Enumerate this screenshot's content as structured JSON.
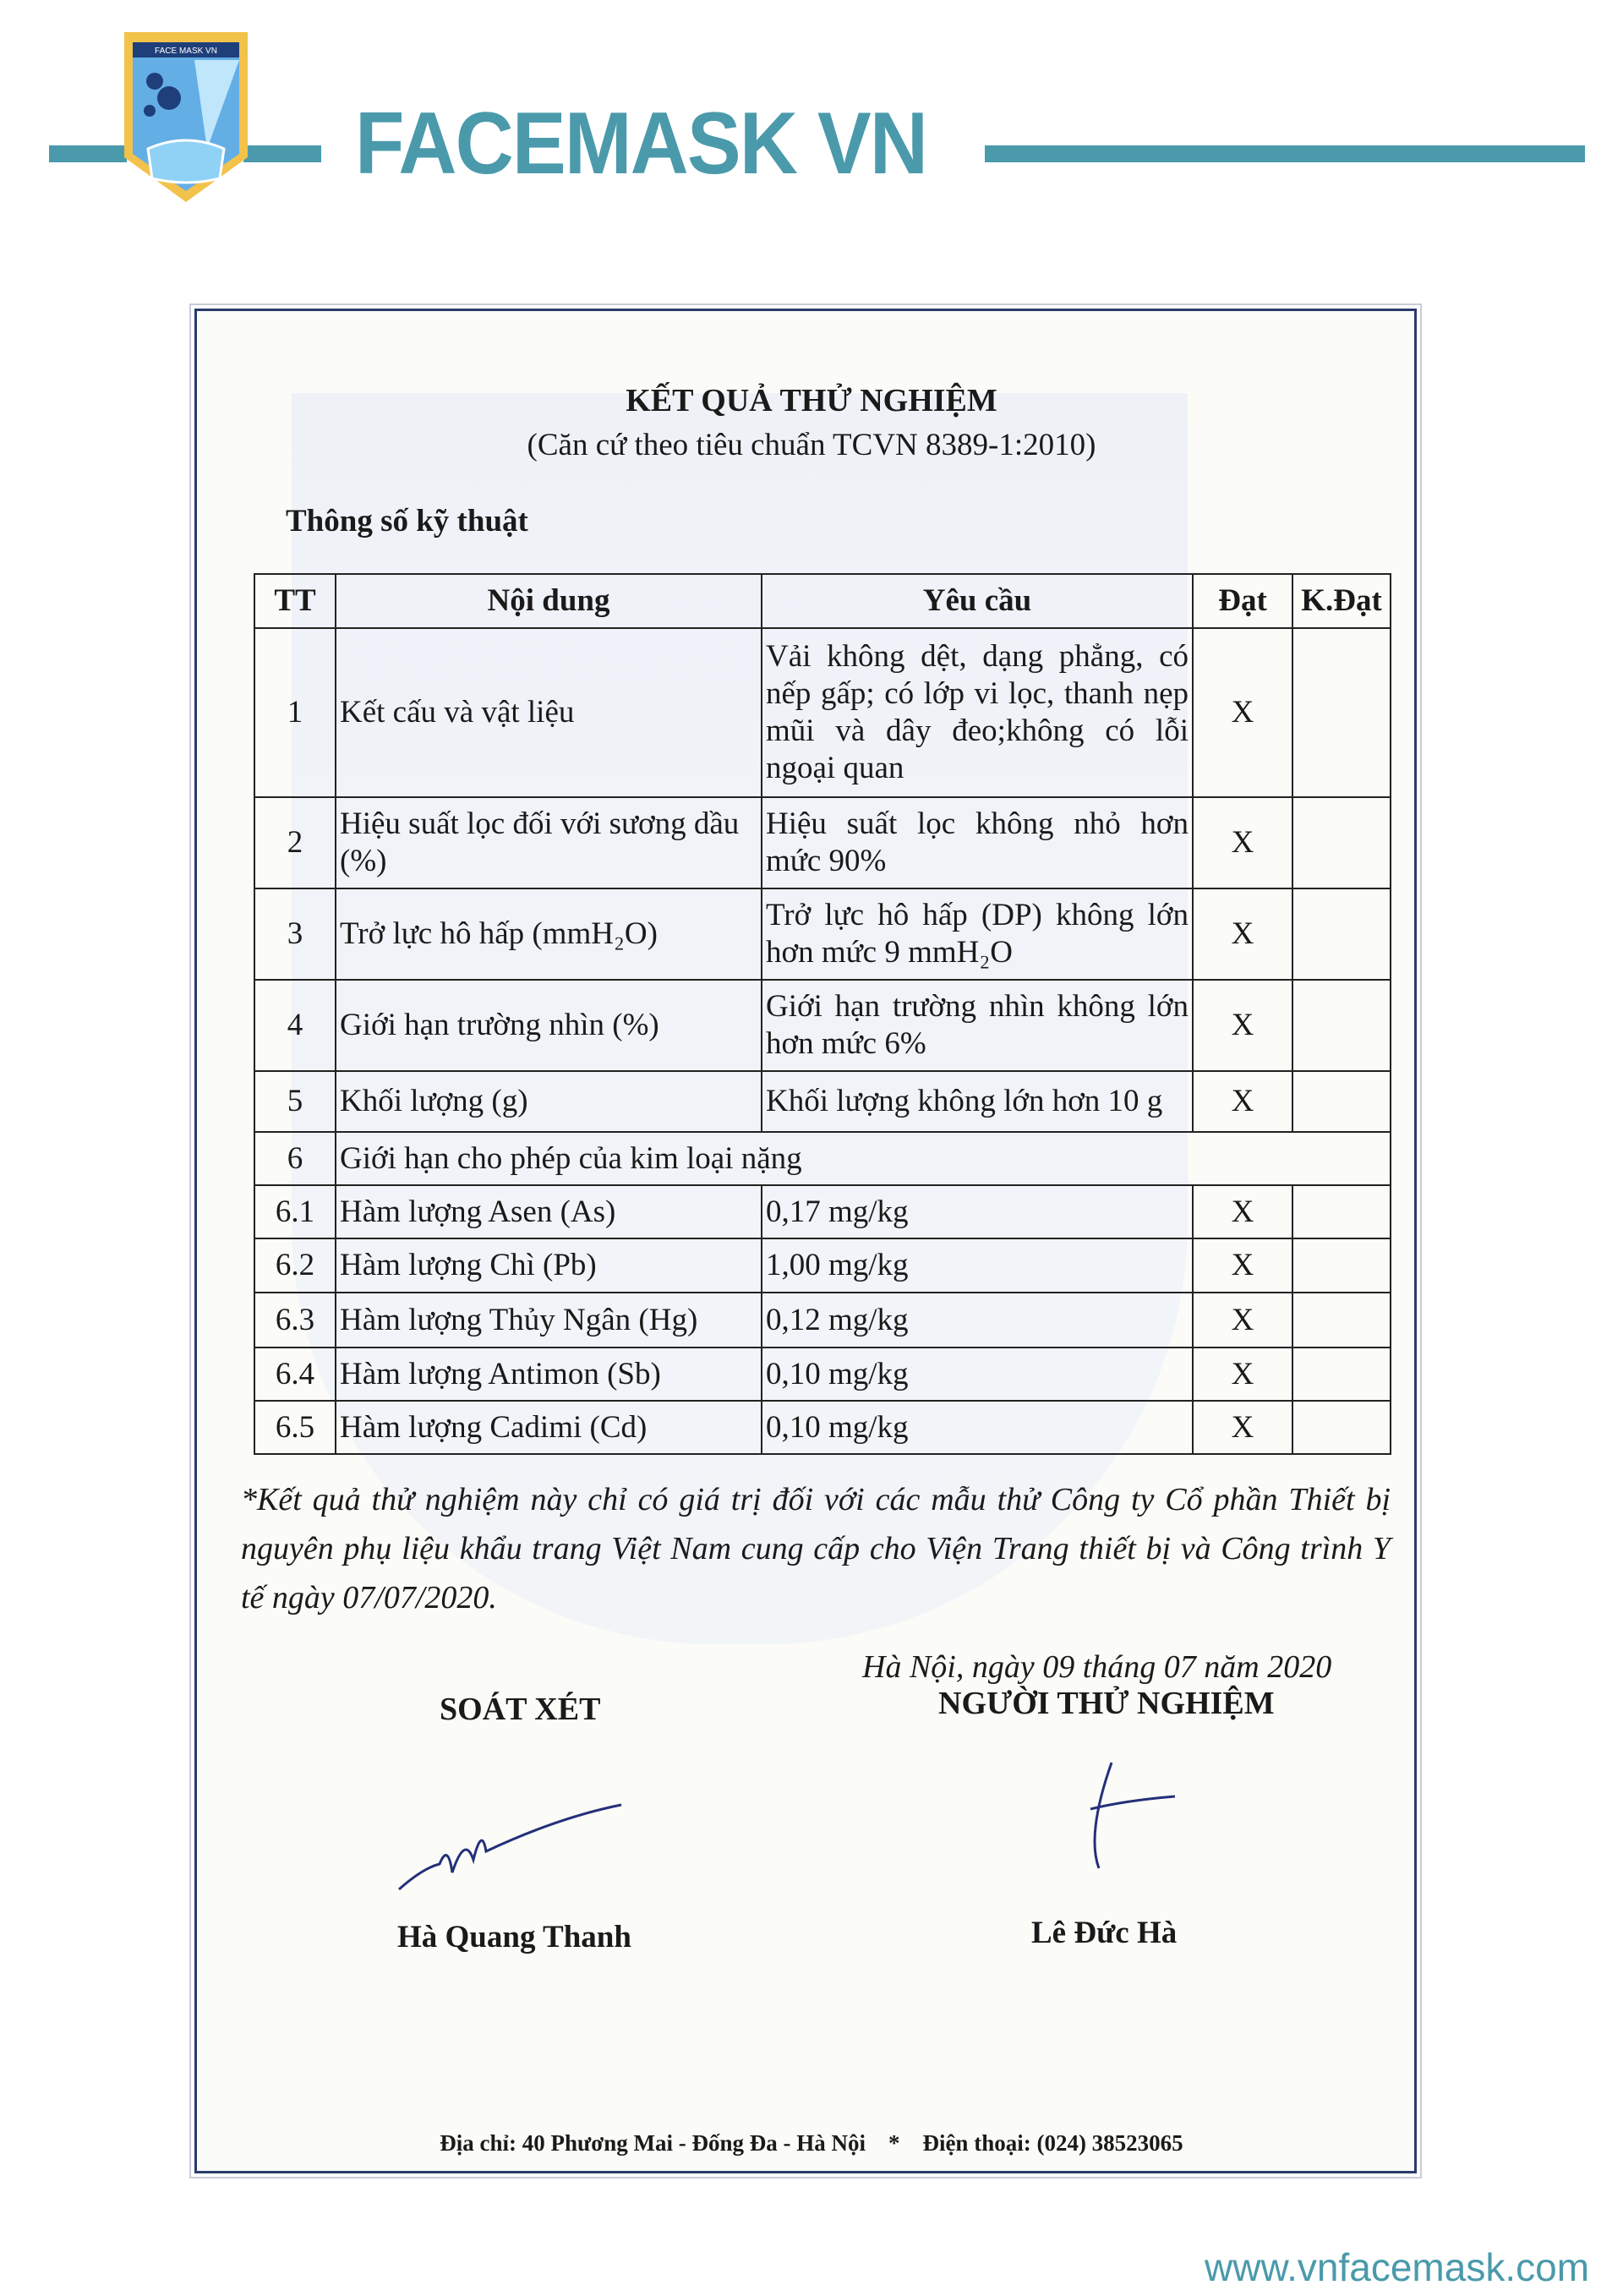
{
  "header": {
    "brand": "FACEMASK VN",
    "logo_text": "FACE MASK VN",
    "accent": "#4a9aab"
  },
  "document": {
    "title": "KẾT QUẢ THỬ NGHIỆM",
    "subtitle": "(Căn cứ theo tiêu chuẩn TCVN 8389-1:2010)",
    "section": "Thông số kỹ thuật",
    "table": {
      "headers": [
        "TT",
        "Nội dung",
        "Yêu cầu",
        "Đạt",
        "K.Đạt"
      ],
      "rows": [
        {
          "tt": "1",
          "content": "Kết cấu và vật liệu",
          "req": "Vải không dệt, dạng phẳng, có nếp gấp; có lớp vi lọc, thanh nẹp mũi và dây đeo;không có lỗi ngoại quan",
          "pass": "X",
          "fail": ""
        },
        {
          "tt": "2",
          "content": "Hiệu suất lọc đối với sương dầu (%)",
          "req": "Hiệu suất lọc không nhỏ hơn mức 90%",
          "pass": "X",
          "fail": ""
        },
        {
          "tt": "3",
          "content": "Trở lực hô hấp (mmH₂O)",
          "req": "Trở lực hô hấp (DP) không lớn hơn mức 9 mmH₂O",
          "pass": "X",
          "fail": ""
        },
        {
          "tt": "4",
          "content": "Giới hạn trường nhìn (%)",
          "req": "Giới hạn trường nhìn không lớn hơn mức 6%",
          "pass": "X",
          "fail": ""
        },
        {
          "tt": "5",
          "content": "Khối lượng (g)",
          "req": "Khối lượng không lớn hơn 10 g",
          "pass": "X",
          "fail": ""
        },
        {
          "tt": "6",
          "content": "Giới hạn cho phép của kim loại nặng"
        },
        {
          "tt": "6.1",
          "content": "Hàm lượng Asen (As)",
          "req": "0,17 mg/kg",
          "pass": "X",
          "fail": ""
        },
        {
          "tt": "6.2",
          "content": "Hàm lượng Chì (Pb)",
          "req": "1,00 mg/kg",
          "pass": "X",
          "fail": ""
        },
        {
          "tt": "6.3",
          "content": "Hàm lượng Thủy Ngân (Hg)",
          "req": "0,12 mg/kg",
          "pass": "X",
          "fail": ""
        },
        {
          "tt": "6.4",
          "content": "Hàm lượng Antimon (Sb)",
          "req": "0,10 mg/kg",
          "pass": "X",
          "fail": ""
        },
        {
          "tt": "6.5",
          "content": "Hàm lượng Cadimi (Cd)",
          "req": "0,10 mg/kg",
          "pass": "X",
          "fail": ""
        }
      ]
    },
    "note": "*Kết quả thử nghiệm này chỉ có giá trị đối với các mẫu thử Công ty Cổ phần Thiết bị nguyên phụ liệu khẩu trang Việt Nam cung cấp cho Viện Trang thiết bị  và Công trình Y tế ngày 07/07/2020.",
    "date": "Hà Nội, ngày 09  tháng 07  năm 2020",
    "reviewer_title": "SOÁT XÉT",
    "tester_title": "NGƯỜI THỬ NGHIỆM",
    "reviewer_name": "Hà Quang Thanh",
    "tester_name": "Lê Đức Hà",
    "footer": "Địa chỉ: 40 Phương Mai - Đống Đa - Hà Nội    *    Điện thoại: (024) 38523065"
  },
  "website": "www.vnfacemask.com"
}
